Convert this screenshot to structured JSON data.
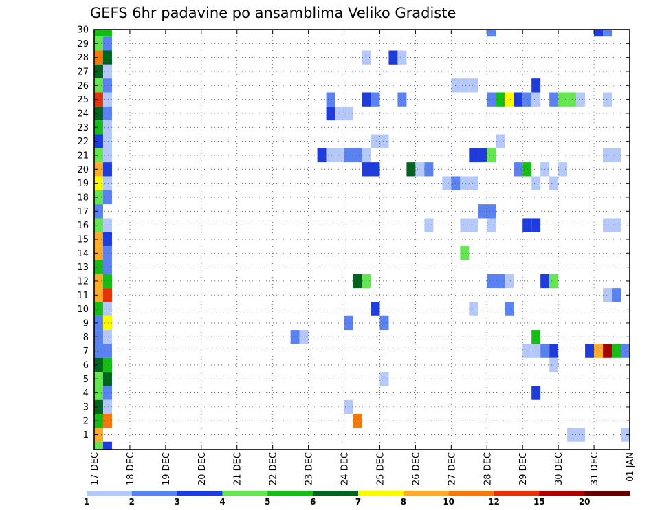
{
  "chart_data": {
    "type": "heatmap",
    "title": "GEFS 6hr padavine po ansamblima Veliko Gradiste",
    "xlabel": "",
    "ylabel": "",
    "x_tick_labels": [
      "17 DEC",
      "18 DEC",
      "19 DEC",
      "20 DEC",
      "21 DEC",
      "22 DEC",
      "23 DEC",
      "24 DEC",
      "25 DEC",
      "26 DEC",
      "27 DEC",
      "28 DEC",
      "29 DEC",
      "30 DEC",
      "31 DEC",
      "01 JAN"
    ],
    "y_tick_labels": [
      "1",
      "2",
      "3",
      "4",
      "5",
      "6",
      "7",
      "8",
      "9",
      "10",
      "11",
      "12",
      "13",
      "14",
      "15",
      "16",
      "17",
      "18",
      "19",
      "20",
      "21",
      "22",
      "23",
      "24",
      "25",
      "26",
      "27",
      "28",
      "29",
      "30"
    ],
    "xlim_days": [
      0,
      15
    ],
    "ylim_members": [
      0.2,
      30
    ],
    "grid": true,
    "legend": "bottom",
    "colorbar": {
      "labels": [
        "1",
        "2",
        "3",
        "4",
        "5",
        "6",
        "7",
        "8",
        "10",
        "12",
        "15",
        "20"
      ],
      "colors": [
        "#b4c8fa",
        "#5a82f0",
        "#1e3cdc",
        "#64e650",
        "#14be14",
        "#00641e",
        "#fafa00",
        "#ffaa28",
        "#f5780a",
        "#e6320a",
        "#aa0000",
        "#640000"
      ]
    },
    "cell_width_days": 0.25,
    "cells": [
      {
        "d": 0.0,
        "m": 30,
        "c": "#14be14"
      },
      {
        "d": 0.25,
        "m": 30,
        "c": "#14be14"
      },
      {
        "d": 11.0,
        "m": 30,
        "c": "#5a82f0"
      },
      {
        "d": 14.0,
        "m": 30,
        "c": "#1e3cdc"
      },
      {
        "d": 14.25,
        "m": 30,
        "c": "#5a82f0"
      },
      {
        "d": 0.0,
        "m": 29,
        "c": "#64e650"
      },
      {
        "d": 0.25,
        "m": 29,
        "c": "#5a82f0"
      },
      {
        "d": 0.0,
        "m": 28,
        "c": "#f5780a"
      },
      {
        "d": 0.25,
        "m": 28,
        "c": "#00641e"
      },
      {
        "d": 7.5,
        "m": 28,
        "c": "#b4c8fa"
      },
      {
        "d": 8.25,
        "m": 28,
        "c": "#1e3cdc"
      },
      {
        "d": 8.5,
        "m": 28,
        "c": "#b4c8fa"
      },
      {
        "d": 0.0,
        "m": 27,
        "c": "#00641e"
      },
      {
        "d": 0.25,
        "m": 27,
        "c": "#b4c8fa"
      },
      {
        "d": 0.0,
        "m": 26,
        "c": "#64e650"
      },
      {
        "d": 0.25,
        "m": 26,
        "c": "#5a82f0"
      },
      {
        "d": 10.0,
        "m": 26,
        "c": "#b4c8fa"
      },
      {
        "d": 10.25,
        "m": 26,
        "c": "#b4c8fa"
      },
      {
        "d": 10.5,
        "m": 26,
        "c": "#b4c8fa"
      },
      {
        "d": 12.25,
        "m": 26,
        "c": "#1e3cdc"
      },
      {
        "d": 0.0,
        "m": 25,
        "c": "#e6320a"
      },
      {
        "d": 0.25,
        "m": 25,
        "c": "#b4c8fa"
      },
      {
        "d": 6.5,
        "m": 25,
        "c": "#5a82f0"
      },
      {
        "d": 7.5,
        "m": 25,
        "c": "#1e3cdc"
      },
      {
        "d": 7.75,
        "m": 25,
        "c": "#5a82f0"
      },
      {
        "d": 8.5,
        "m": 25,
        "c": "#5a82f0"
      },
      {
        "d": 11.0,
        "m": 25,
        "c": "#5a82f0"
      },
      {
        "d": 11.25,
        "m": 25,
        "c": "#14be14"
      },
      {
        "d": 11.5,
        "m": 25,
        "c": "#fafa00"
      },
      {
        "d": 11.75,
        "m": 25,
        "c": "#1e3cdc"
      },
      {
        "d": 12.0,
        "m": 25,
        "c": "#5a82f0"
      },
      {
        "d": 12.25,
        "m": 25,
        "c": "#b4c8fa"
      },
      {
        "d": 12.75,
        "m": 25,
        "c": "#5a82f0"
      },
      {
        "d": 13.0,
        "m": 25,
        "c": "#64e650"
      },
      {
        "d": 13.25,
        "m": 25,
        "c": "#64e650"
      },
      {
        "d": 13.5,
        "m": 25,
        "c": "#b4c8fa"
      },
      {
        "d": 14.25,
        "m": 25,
        "c": "#b4c8fa"
      },
      {
        "d": 0.0,
        "m": 24,
        "c": "#00641e"
      },
      {
        "d": 0.25,
        "m": 24,
        "c": "#5a82f0"
      },
      {
        "d": 6.5,
        "m": 24,
        "c": "#1e3cdc"
      },
      {
        "d": 6.75,
        "m": 24,
        "c": "#b4c8fa"
      },
      {
        "d": 7.0,
        "m": 24,
        "c": "#b4c8fa"
      },
      {
        "d": 0.0,
        "m": 23,
        "c": "#14be14"
      },
      {
        "d": 0.25,
        "m": 23,
        "c": "#b4c8fa"
      },
      {
        "d": 0.0,
        "m": 22,
        "c": "#1e3cdc"
      },
      {
        "d": 0.25,
        "m": 22,
        "c": "#b4c8fa"
      },
      {
        "d": 7.75,
        "m": 22,
        "c": "#b4c8fa"
      },
      {
        "d": 8.0,
        "m": 22,
        "c": "#b4c8fa"
      },
      {
        "d": 11.25,
        "m": 22,
        "c": "#b4c8fa"
      },
      {
        "d": 0.0,
        "m": 21,
        "c": "#64e650"
      },
      {
        "d": 0.25,
        "m": 21,
        "c": "#b4c8fa"
      },
      {
        "d": 6.25,
        "m": 21,
        "c": "#1e3cdc"
      },
      {
        "d": 6.5,
        "m": 21,
        "c": "#b4c8fa"
      },
      {
        "d": 6.75,
        "m": 21,
        "c": "#b4c8fa"
      },
      {
        "d": 7.0,
        "m": 21,
        "c": "#5a82f0"
      },
      {
        "d": 7.25,
        "m": 21,
        "c": "#5a82f0"
      },
      {
        "d": 7.5,
        "m": 21,
        "c": "#b4c8fa"
      },
      {
        "d": 10.5,
        "m": 21,
        "c": "#1e3cdc"
      },
      {
        "d": 10.75,
        "m": 21,
        "c": "#1e3cdc"
      },
      {
        "d": 11.0,
        "m": 21,
        "c": "#64e650"
      },
      {
        "d": 14.25,
        "m": 21,
        "c": "#b4c8fa"
      },
      {
        "d": 14.5,
        "m": 21,
        "c": "#b4c8fa"
      },
      {
        "d": 0.0,
        "m": 20,
        "c": "#ffaa28"
      },
      {
        "d": 0.25,
        "m": 20,
        "c": "#1e3cdc"
      },
      {
        "d": 7.5,
        "m": 20,
        "c": "#1e3cdc"
      },
      {
        "d": 7.75,
        "m": 20,
        "c": "#1e3cdc"
      },
      {
        "d": 8.75,
        "m": 20,
        "c": "#00641e"
      },
      {
        "d": 9.0,
        "m": 20,
        "c": "#b4c8fa"
      },
      {
        "d": 9.25,
        "m": 20,
        "c": "#5a82f0"
      },
      {
        "d": 11.75,
        "m": 20,
        "c": "#5a82f0"
      },
      {
        "d": 12.0,
        "m": 20,
        "c": "#14be14"
      },
      {
        "d": 12.5,
        "m": 20,
        "c": "#b4c8fa"
      },
      {
        "d": 13.0,
        "m": 20,
        "c": "#b4c8fa"
      },
      {
        "d": 0.0,
        "m": 19,
        "c": "#fafa00"
      },
      {
        "d": 0.25,
        "m": 19,
        "c": "#b4c8fa"
      },
      {
        "d": 9.75,
        "m": 19,
        "c": "#b4c8fa"
      },
      {
        "d": 10.0,
        "m": 19,
        "c": "#5a82f0"
      },
      {
        "d": 10.25,
        "m": 19,
        "c": "#b4c8fa"
      },
      {
        "d": 10.5,
        "m": 19,
        "c": "#b4c8fa"
      },
      {
        "d": 12.25,
        "m": 19,
        "c": "#b4c8fa"
      },
      {
        "d": 12.75,
        "m": 19,
        "c": "#b4c8fa"
      },
      {
        "d": 0.0,
        "m": 18,
        "c": "#64e650"
      },
      {
        "d": 0.25,
        "m": 18,
        "c": "#5a82f0"
      },
      {
        "d": 0.0,
        "m": 17,
        "c": "#5a82f0"
      },
      {
        "d": 10.75,
        "m": 17,
        "c": "#5a82f0"
      },
      {
        "d": 11.0,
        "m": 17,
        "c": "#5a82f0"
      },
      {
        "d": 0.0,
        "m": 16,
        "c": "#64e650"
      },
      {
        "d": 0.25,
        "m": 16,
        "c": "#b4c8fa"
      },
      {
        "d": 9.25,
        "m": 16,
        "c": "#b4c8fa"
      },
      {
        "d": 10.25,
        "m": 16,
        "c": "#b4c8fa"
      },
      {
        "d": 10.5,
        "m": 16,
        "c": "#b4c8fa"
      },
      {
        "d": 11.0,
        "m": 16,
        "c": "#b4c8fa"
      },
      {
        "d": 12.0,
        "m": 16,
        "c": "#1e3cdc"
      },
      {
        "d": 12.25,
        "m": 16,
        "c": "#1e3cdc"
      },
      {
        "d": 14.25,
        "m": 16,
        "c": "#b4c8fa"
      },
      {
        "d": 14.5,
        "m": 16,
        "c": "#b4c8fa"
      },
      {
        "d": 0.0,
        "m": 15,
        "c": "#ffaa28"
      },
      {
        "d": 0.25,
        "m": 15,
        "c": "#1e3cdc"
      },
      {
        "d": 0.0,
        "m": 14,
        "c": "#ffaa28"
      },
      {
        "d": 0.25,
        "m": 14,
        "c": "#5a82f0"
      },
      {
        "d": 10.25,
        "m": 14,
        "c": "#64e650"
      },
      {
        "d": 0.0,
        "m": 13,
        "c": "#14be14"
      },
      {
        "d": 0.25,
        "m": 13,
        "c": "#5a82f0"
      },
      {
        "d": 0.0,
        "m": 12,
        "c": "#ffaa28"
      },
      {
        "d": 0.25,
        "m": 12,
        "c": "#14be14"
      },
      {
        "d": 7.25,
        "m": 12,
        "c": "#00641e"
      },
      {
        "d": 7.5,
        "m": 12,
        "c": "#64e650"
      },
      {
        "d": 11.0,
        "m": 12,
        "c": "#5a82f0"
      },
      {
        "d": 11.25,
        "m": 12,
        "c": "#5a82f0"
      },
      {
        "d": 11.5,
        "m": 12,
        "c": "#b4c8fa"
      },
      {
        "d": 12.5,
        "m": 12,
        "c": "#1e3cdc"
      },
      {
        "d": 12.75,
        "m": 12,
        "c": "#64e650"
      },
      {
        "d": 0.0,
        "m": 11,
        "c": "#ffaa28"
      },
      {
        "d": 0.25,
        "m": 11,
        "c": "#e6320a"
      },
      {
        "d": 14.25,
        "m": 11,
        "c": "#b4c8fa"
      },
      {
        "d": 14.5,
        "m": 11,
        "c": "#5a82f0"
      },
      {
        "d": 0.0,
        "m": 10,
        "c": "#14be14"
      },
      {
        "d": 0.25,
        "m": 10,
        "c": "#b4c8fa"
      },
      {
        "d": 7.75,
        "m": 10,
        "c": "#1e3cdc"
      },
      {
        "d": 10.5,
        "m": 10,
        "c": "#b4c8fa"
      },
      {
        "d": 11.5,
        "m": 10,
        "c": "#5a82f0"
      },
      {
        "d": 0.0,
        "m": 9,
        "c": "#5a82f0"
      },
      {
        "d": 0.25,
        "m": 9,
        "c": "#fafa00"
      },
      {
        "d": 7.0,
        "m": 9,
        "c": "#5a82f0"
      },
      {
        "d": 8.0,
        "m": 9,
        "c": "#5a82f0"
      },
      {
        "d": 0.0,
        "m": 8,
        "c": "#5a82f0"
      },
      {
        "d": 0.25,
        "m": 8,
        "c": "#b4c8fa"
      },
      {
        "d": 5.5,
        "m": 8,
        "c": "#5a82f0"
      },
      {
        "d": 5.75,
        "m": 8,
        "c": "#b4c8fa"
      },
      {
        "d": 12.25,
        "m": 8,
        "c": "#14be14"
      },
      {
        "d": 0.0,
        "m": 7,
        "c": "#5a82f0"
      },
      {
        "d": 0.25,
        "m": 7,
        "c": "#5a82f0"
      },
      {
        "d": 12.0,
        "m": 7,
        "c": "#b4c8fa"
      },
      {
        "d": 12.25,
        "m": 7,
        "c": "#b4c8fa"
      },
      {
        "d": 12.5,
        "m": 7,
        "c": "#5a82f0"
      },
      {
        "d": 12.75,
        "m": 7,
        "c": "#1e3cdc"
      },
      {
        "d": 13.75,
        "m": 7,
        "c": "#1e3cdc"
      },
      {
        "d": 14.0,
        "m": 7,
        "c": "#ffaa28"
      },
      {
        "d": 14.25,
        "m": 7,
        "c": "#aa0000"
      },
      {
        "d": 14.5,
        "m": 7,
        "c": "#14be14"
      },
      {
        "d": 14.75,
        "m": 7,
        "c": "#5a82f0"
      },
      {
        "d": 0.0,
        "m": 6,
        "c": "#00641e"
      },
      {
        "d": 0.25,
        "m": 6,
        "c": "#14be14"
      },
      {
        "d": 12.75,
        "m": 6,
        "c": "#b4c8fa"
      },
      {
        "d": 0.0,
        "m": 5,
        "c": "#64e650"
      },
      {
        "d": 0.25,
        "m": 5,
        "c": "#00641e"
      },
      {
        "d": 8.0,
        "m": 5,
        "c": "#b4c8fa"
      },
      {
        "d": 0.0,
        "m": 4,
        "c": "#64e650"
      },
      {
        "d": 0.25,
        "m": 4,
        "c": "#5a82f0"
      },
      {
        "d": 12.25,
        "m": 4,
        "c": "#1e3cdc"
      },
      {
        "d": 0.0,
        "m": 3,
        "c": "#00641e"
      },
      {
        "d": 0.25,
        "m": 3,
        "c": "#b4c8fa"
      },
      {
        "d": 7.0,
        "m": 3,
        "c": "#b4c8fa"
      },
      {
        "d": 0.0,
        "m": 2,
        "c": "#14be14"
      },
      {
        "d": 0.25,
        "m": 2,
        "c": "#f5780a"
      },
      {
        "d": 7.25,
        "m": 2,
        "c": "#f5780a"
      },
      {
        "d": 0.0,
        "m": 1,
        "c": "#ffaa28"
      },
      {
        "d": 13.25,
        "m": 1,
        "c": "#b4c8fa"
      },
      {
        "d": 13.5,
        "m": 1,
        "c": "#b4c8fa"
      },
      {
        "d": 14.75,
        "m": 1,
        "c": "#b4c8fa"
      },
      {
        "d": 0.0,
        "m": 0,
        "c": "#64e650"
      },
      {
        "d": 0.25,
        "m": 0,
        "c": "#1e3cdc"
      }
    ]
  }
}
